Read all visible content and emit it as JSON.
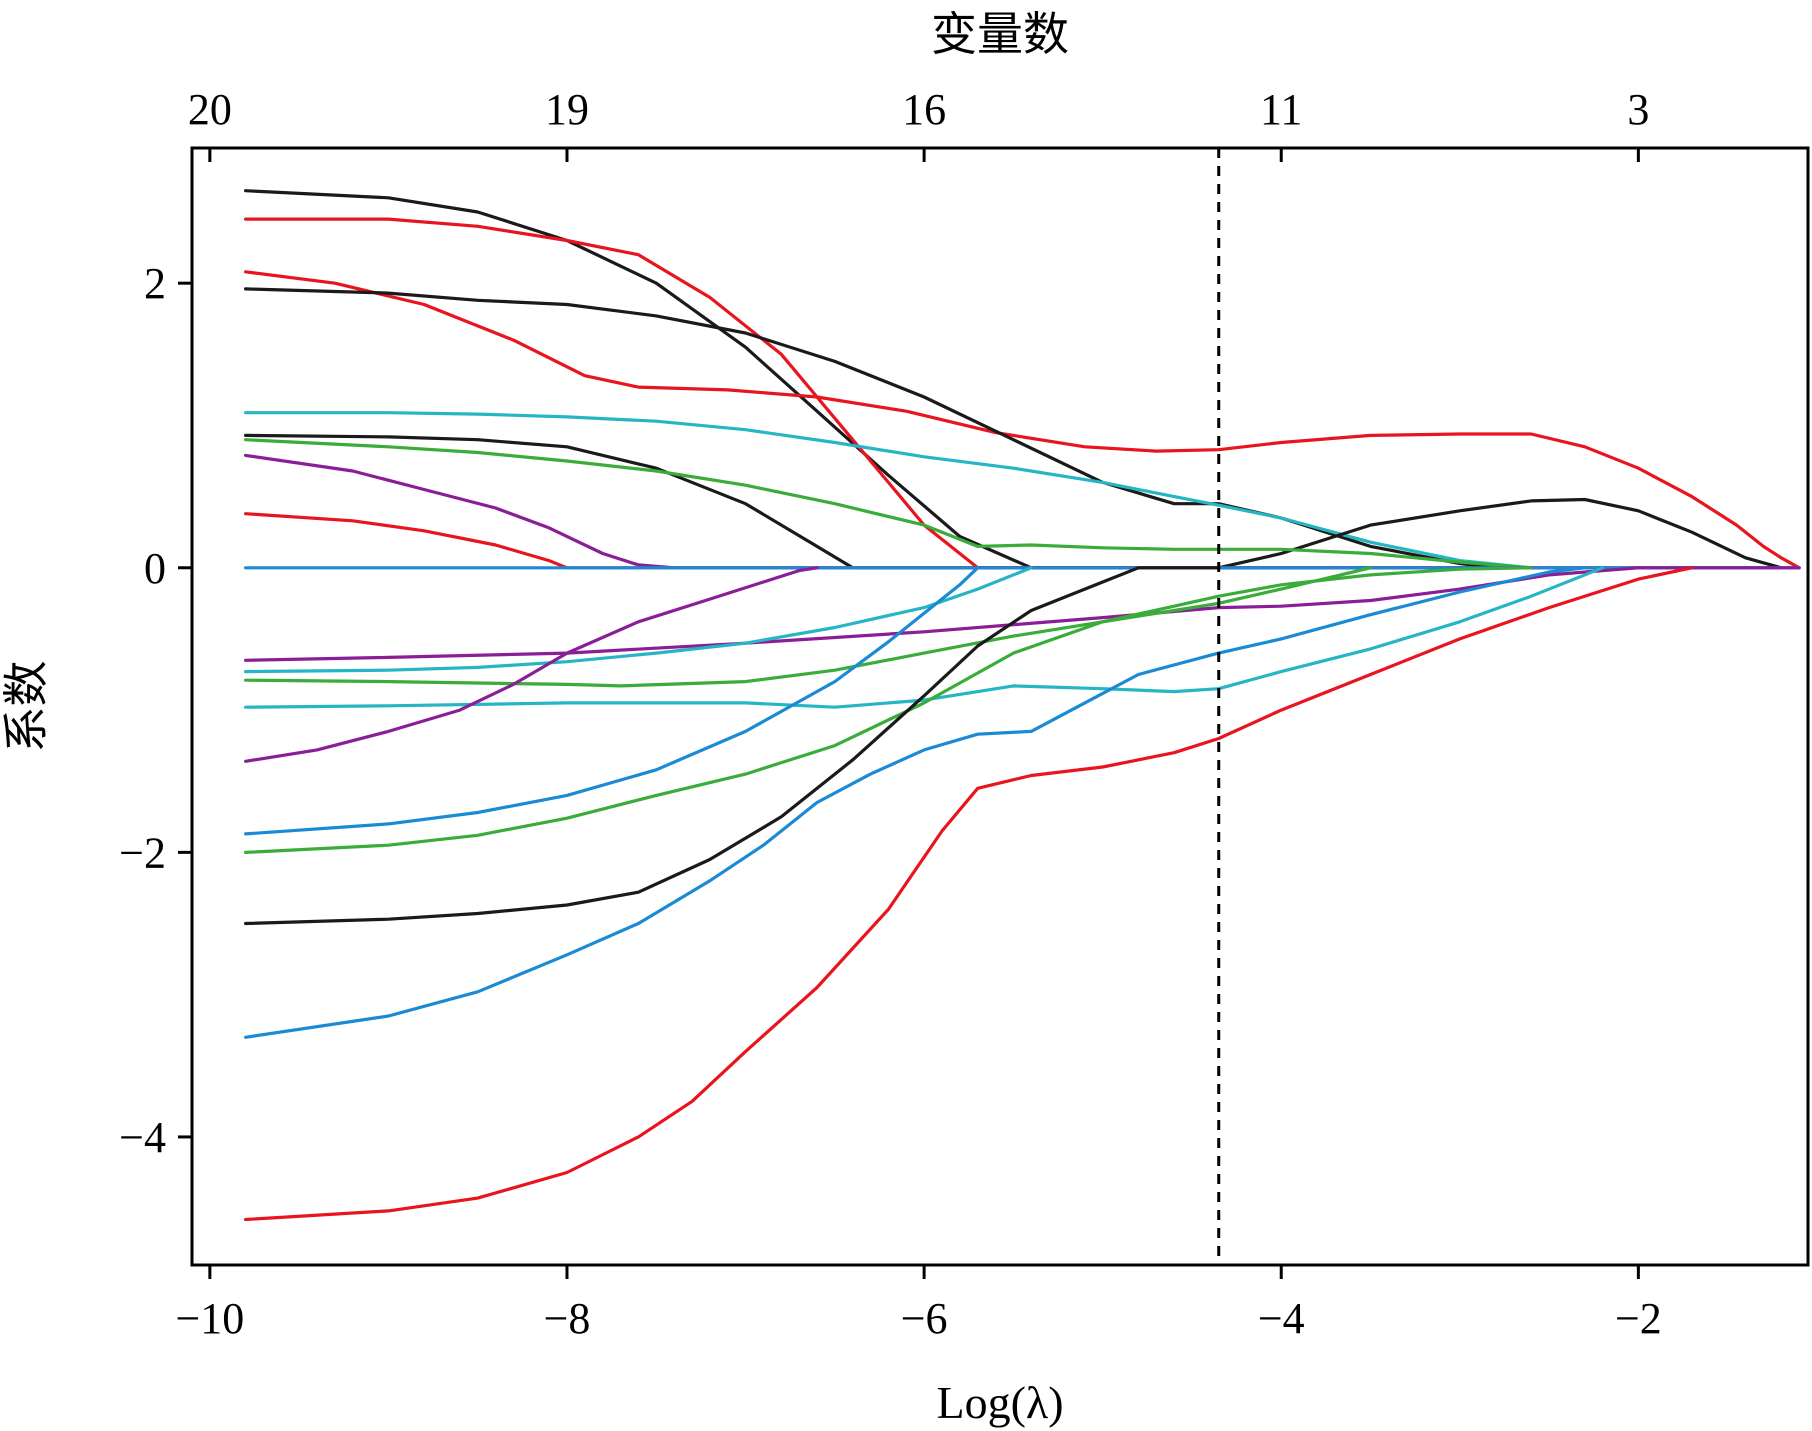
{
  "chart_data": {
    "type": "line",
    "xlabel": "Log(λ)",
    "ylabel": "系数",
    "top_axis_label": "变量数",
    "xlim": [
      -10.1,
      -1.05
    ],
    "ylim": [
      -4.9,
      2.95
    ],
    "x_ticks": [
      -10,
      -8,
      -6,
      -4,
      -2
    ],
    "x_tick_labels": [
      "−10",
      "−8",
      "−6",
      "−4",
      "−2"
    ],
    "y_ticks": [
      -4,
      -2,
      0,
      2
    ],
    "y_tick_labels": [
      "−4",
      "−2",
      "0",
      "2"
    ],
    "top_ticks": [
      -10,
      -8,
      -6,
      -4,
      -2
    ],
    "top_tick_labels": [
      "20",
      "19",
      "16",
      "11",
      "3"
    ],
    "vline_x": -4.35,
    "vline_style": "dashed",
    "grid": false,
    "legend": "none",
    "colors": {
      "black": "#1a1a1a",
      "red": "#e8141e",
      "cyan": "#25b5c4",
      "green": "#3aac3a",
      "purple": "#8a1e96",
      "blue": "#1a8ad4",
      "dashed_line": "#000000"
    },
    "series": [
      {
        "color": "black",
        "x": [
          -9.8,
          -9,
          -8.5,
          -8,
          -7.5,
          -7,
          -6.6,
          -6.2,
          -5.8,
          -5.4,
          -5,
          -4.6,
          -4.35,
          -4,
          -3.6,
          -3.2,
          -2.9
        ],
        "y": [
          2.65,
          2.6,
          2.5,
          2.3,
          2.0,
          1.55,
          1.1,
          0.65,
          0.22,
          0,
          0,
          0,
          0,
          0,
          0,
          0,
          0
        ]
      },
      {
        "color": "red",
        "x": [
          -9.8,
          -9,
          -8.5,
          -8,
          -7.6,
          -7.2,
          -6.8,
          -6.4,
          -6.0,
          -5.7,
          -5.5,
          -5,
          -4.6,
          -4.35,
          -4,
          -3.5,
          -3,
          -2.6,
          -2.3,
          -2.0,
          -1.7,
          -1.4,
          -1.2,
          -1.1
        ],
        "y": [
          2.45,
          2.45,
          2.4,
          2.3,
          2.2,
          1.9,
          1.5,
          0.9,
          0.3,
          0,
          0,
          0,
          0,
          0,
          0,
          0,
          0,
          0,
          0,
          0,
          0,
          0,
          0,
          0
        ]
      },
      {
        "color": "red",
        "x": [
          -9.8,
          -9.3,
          -8.8,
          -8.3,
          -7.9,
          -7.6,
          -7.1,
          -6.6,
          -6.1,
          -5.6,
          -5.1,
          -4.7,
          -4.35,
          -4,
          -3.5,
          -3,
          -2.6,
          -2.3,
          -2.0,
          -1.7,
          -1.45,
          -1.3,
          -1.2,
          -1.1
        ],
        "y": [
          2.08,
          2.0,
          1.85,
          1.6,
          1.35,
          1.27,
          1.25,
          1.2,
          1.1,
          0.95,
          0.85,
          0.82,
          0.83,
          0.88,
          0.93,
          0.94,
          0.94,
          0.85,
          0.7,
          0.5,
          0.3,
          0.15,
          0.07,
          0
        ]
      },
      {
        "color": "black",
        "x": [
          -9.8,
          -9,
          -8.5,
          -8,
          -7.5,
          -7,
          -6.5,
          -6,
          -5.5,
          -5,
          -4.6,
          -4.35,
          -4,
          -3.5,
          -3,
          -2.8
        ],
        "y": [
          1.96,
          1.93,
          1.88,
          1.85,
          1.77,
          1.65,
          1.45,
          1.2,
          0.9,
          0.6,
          0.45,
          0.45,
          0.35,
          0.15,
          0.03,
          0
        ]
      },
      {
        "color": "cyan",
        "x": [
          -9.8,
          -9,
          -8.5,
          -8,
          -7.5,
          -7,
          -6.5,
          -6,
          -5.5,
          -5,
          -4.6,
          -4.35,
          -4,
          -3.5,
          -3,
          -2.6
        ],
        "y": [
          1.09,
          1.09,
          1.08,
          1.06,
          1.03,
          0.97,
          0.88,
          0.78,
          0.7,
          0.6,
          0.5,
          0.44,
          0.35,
          0.18,
          0.05,
          0
        ]
      },
      {
        "color": "black",
        "x": [
          -9.8,
          -9,
          -8.5,
          -8,
          -7.5,
          -7,
          -6.6,
          -6.4,
          -6.0,
          -5.5,
          -5,
          -4.6,
          -4.35,
          -4,
          -3.5,
          -3,
          -2.6,
          -2.3,
          -2.0,
          -1.7,
          -1.4,
          -1.2
        ],
        "y": [
          0.93,
          0.92,
          0.9,
          0.85,
          0.7,
          0.45,
          0.15,
          0,
          0,
          0,
          0,
          0,
          0,
          0.1,
          0.3,
          0.4,
          0.47,
          0.48,
          0.4,
          0.25,
          0.07,
          0
        ]
      },
      {
        "color": "green",
        "x": [
          -9.8,
          -9,
          -8.5,
          -8,
          -7.5,
          -7,
          -6.5,
          -6,
          -5.7,
          -5.4,
          -5,
          -4.6,
          -4.35,
          -4,
          -3.5,
          -3,
          -2.6
        ],
        "y": [
          0.9,
          0.85,
          0.81,
          0.75,
          0.68,
          0.58,
          0.45,
          0.3,
          0.15,
          0.16,
          0.14,
          0.13,
          0.13,
          0.13,
          0.1,
          0.04,
          0
        ]
      },
      {
        "color": "purple",
        "x": [
          -9.8,
          -9.2,
          -8.8,
          -8.4,
          -8.1,
          -7.8,
          -7.6,
          -7.4,
          -4.35,
          -1.1
        ],
        "y": [
          0.79,
          0.68,
          0.55,
          0.42,
          0.28,
          0.1,
          0.02,
          0,
          0,
          0
        ]
      },
      {
        "color": "red",
        "x": [
          -9.8,
          -9.2,
          -8.8,
          -8.4,
          -8.1,
          -8.0,
          -6.6,
          -5.8,
          -5.7,
          -4.35
        ],
        "y": [
          0.38,
          0.33,
          0.26,
          0.16,
          0.05,
          0,
          0,
          0,
          0,
          0
        ]
      },
      {
        "color": "blue",
        "x": [
          -9.8,
          -1.1
        ],
        "y": [
          0,
          0
        ]
      },
      {
        "color": "purple",
        "x": [
          -9.8,
          -9,
          -8,
          -7,
          -6,
          -5,
          -4.35,
          -4,
          -3.5,
          -3,
          -2.5,
          -2,
          -1.5,
          -1.1
        ],
        "y": [
          -0.65,
          -0.63,
          -0.6,
          -0.53,
          -0.45,
          -0.35,
          -0.28,
          -0.27,
          -0.23,
          -0.15,
          -0.05,
          0,
          0,
          0
        ]
      },
      {
        "color": "cyan",
        "x": [
          -9.8,
          -9,
          -8.5,
          -8,
          -7.5,
          -7,
          -6.5,
          -6,
          -5.7,
          -5.4
        ],
        "y": [
          -0.73,
          -0.72,
          -0.7,
          -0.66,
          -0.6,
          -0.53,
          -0.42,
          -0.28,
          -0.15,
          0
        ]
      },
      {
        "color": "green",
        "x": [
          -9.8,
          -9,
          -8.5,
          -8,
          -7.7,
          -7,
          -6.5,
          -6,
          -5.5,
          -5,
          -4.6,
          -4.35,
          -4,
          -3.5
        ],
        "y": [
          -0.79,
          -0.8,
          -0.81,
          -0.82,
          -0.83,
          -0.8,
          -0.72,
          -0.6,
          -0.48,
          -0.38,
          -0.3,
          -0.25,
          -0.15,
          0
        ]
      },
      {
        "color": "cyan",
        "x": [
          -9.8,
          -9,
          -8,
          -7,
          -6.5,
          -6,
          -5.5,
          -5,
          -4.6,
          -4.35,
          -4,
          -3.5,
          -3,
          -2.6,
          -2.2
        ],
        "y": [
          -0.98,
          -0.97,
          -0.95,
          -0.95,
          -0.98,
          -0.93,
          -0.83,
          -0.85,
          -0.87,
          -0.85,
          -0.73,
          -0.57,
          -0.38,
          -0.2,
          0
        ]
      },
      {
        "color": "purple",
        "x": [
          -9.8,
          -9.4,
          -9,
          -8.6,
          -8.3,
          -8,
          -7.6,
          -7.2,
          -6.9,
          -6.7,
          -6.6
        ],
        "y": [
          -1.36,
          -1.28,
          -1.15,
          -1.0,
          -0.82,
          -0.6,
          -0.38,
          -0.22,
          -0.1,
          -0.02,
          0
        ]
      },
      {
        "color": "blue",
        "x": [
          -9.8,
          -9,
          -8.5,
          -8,
          -7.5,
          -7,
          -6.5,
          -6.2,
          -6.0,
          -5.8,
          -5.7
        ],
        "y": [
          -1.87,
          -1.8,
          -1.72,
          -1.6,
          -1.42,
          -1.15,
          -0.8,
          -0.52,
          -0.32,
          -0.12,
          0
        ]
      },
      {
        "color": "green",
        "x": [
          -9.8,
          -9,
          -8.5,
          -8,
          -7.5,
          -7,
          -6.5,
          -6,
          -5.5,
          -5,
          -4.6,
          -4.35,
          -4,
          -3.5,
          -3,
          -2.6
        ],
        "y": [
          -2.0,
          -1.95,
          -1.88,
          -1.76,
          -1.6,
          -1.45,
          -1.25,
          -0.95,
          -0.6,
          -0.38,
          -0.27,
          -0.2,
          -0.12,
          -0.05,
          -0.01,
          0
        ]
      },
      {
        "color": "black",
        "x": [
          -9.8,
          -9,
          -8.5,
          -8,
          -7.6,
          -7.2,
          -6.8,
          -6.4,
          -6.0,
          -5.7,
          -5.4,
          -5.0,
          -4.8,
          -4.35
        ],
        "y": [
          -2.5,
          -2.47,
          -2.43,
          -2.37,
          -2.28,
          -2.05,
          -1.75,
          -1.35,
          -0.9,
          -0.55,
          -0.3,
          -0.1,
          0,
          0
        ]
      },
      {
        "color": "blue",
        "x": [
          -9.8,
          -9,
          -8.5,
          -8,
          -7.6,
          -7.2,
          -6.9,
          -6.6,
          -6.3,
          -6.0,
          -5.7,
          -5.4,
          -5.1,
          -4.8,
          -4.35,
          -4,
          -3.5,
          -3,
          -2.5,
          -2.3
        ],
        "y": [
          -3.3,
          -3.15,
          -2.98,
          -2.72,
          -2.5,
          -2.2,
          -1.95,
          -1.65,
          -1.45,
          -1.28,
          -1.17,
          -1.15,
          -0.95,
          -0.75,
          -0.6,
          -0.5,
          -0.33,
          -0.17,
          -0.03,
          0
        ]
      },
      {
        "color": "red",
        "x": [
          -9.8,
          -9,
          -8.5,
          -8,
          -7.6,
          -7.3,
          -7.0,
          -6.6,
          -6.2,
          -5.9,
          -5.7,
          -5.4,
          -5,
          -4.6,
          -4.35,
          -4,
          -3.5,
          -3,
          -2.5,
          -2,
          -1.7
        ],
        "y": [
          -4.58,
          -4.52,
          -4.43,
          -4.25,
          -4.0,
          -3.75,
          -3.4,
          -2.95,
          -2.4,
          -1.85,
          -1.55,
          -1.46,
          -1.4,
          -1.3,
          -1.2,
          -1.0,
          -0.75,
          -0.5,
          -0.28,
          -0.08,
          0
        ]
      }
    ]
  }
}
